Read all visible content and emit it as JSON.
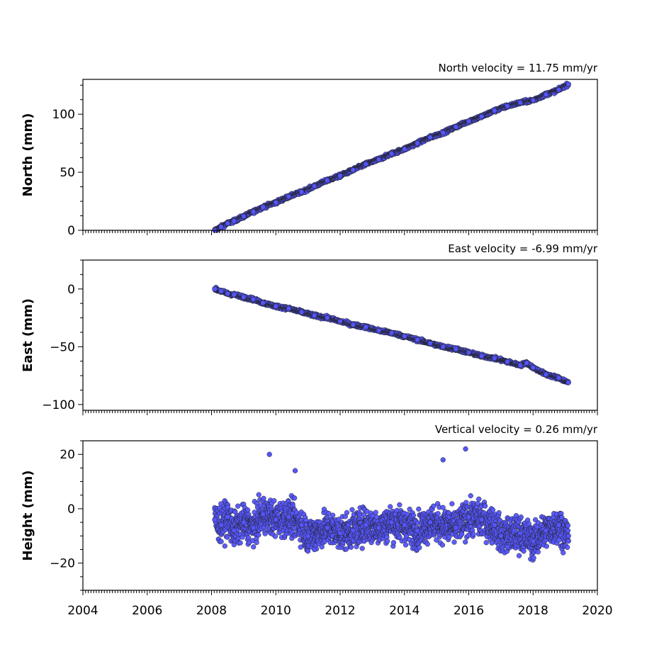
{
  "chart_data": [
    {
      "type": "scatter",
      "title": "North velocity = 11.75 mm/yr",
      "ylabel": "North (mm)",
      "xlim": [
        2004,
        2020
      ],
      "ylim": [
        0,
        130
      ],
      "yticks": [
        0,
        50,
        100
      ],
      "marker_color": "#5555ff",
      "series": [
        {
          "x": [
            2008.1,
            2008.3,
            2008.5,
            2008.7,
            2009.0,
            2009.3,
            2009.6,
            2010.0,
            2010.4,
            2010.8,
            2011.2,
            2011.6,
            2012.0,
            2012.4,
            2012.8,
            2013.2,
            2013.6,
            2014.0,
            2014.4,
            2014.8,
            2015.2,
            2015.6,
            2016.0,
            2016.4,
            2016.8,
            2017.2,
            2017.6,
            2018.0,
            2018.4,
            2018.8,
            2019.1
          ],
          "y": [
            0,
            3,
            6,
            8,
            12,
            16,
            20,
            24,
            29,
            33,
            38,
            43,
            47,
            52,
            57,
            61,
            66,
            70,
            75,
            80,
            84,
            89,
            94,
            98,
            103,
            107,
            110,
            112,
            117,
            121,
            126
          ]
        }
      ]
    },
    {
      "type": "scatter",
      "title": "East velocity = -6.99 mm/yr",
      "ylabel": "East (mm)",
      "xlim": [
        2004,
        2020
      ],
      "ylim": [
        -105,
        25
      ],
      "yticks": [
        -100,
        -50,
        0
      ],
      "marker_color": "#5555ff",
      "series": [
        {
          "x": [
            2008.1,
            2008.3,
            2008.5,
            2008.7,
            2009.0,
            2009.3,
            2009.6,
            2010.0,
            2010.4,
            2010.8,
            2011.2,
            2011.6,
            2012.0,
            2012.4,
            2012.8,
            2013.2,
            2013.6,
            2014.0,
            2014.4,
            2014.8,
            2015.2,
            2015.6,
            2016.0,
            2016.4,
            2016.8,
            2017.2,
            2017.6,
            2017.8,
            2018.0,
            2018.4,
            2018.8,
            2019.1
          ],
          "y": [
            0,
            -2,
            -4,
            -5,
            -7,
            -9,
            -12,
            -15,
            -17,
            -20,
            -23,
            -25,
            -28,
            -31,
            -33,
            -36,
            -38,
            -41,
            -44,
            -47,
            -50,
            -52,
            -55,
            -58,
            -60,
            -63,
            -66,
            -64,
            -68,
            -74,
            -77,
            -81
          ]
        }
      ]
    },
    {
      "type": "scatter",
      "title": "Vertical velocity = 0.26 mm/yr",
      "ylabel": "Height (mm)",
      "xlabel": "",
      "xlim": [
        2004,
        2020
      ],
      "ylim": [
        -30,
        25
      ],
      "yticks": [
        -20,
        0,
        20
      ],
      "xticks": [
        2004,
        2006,
        2008,
        2010,
        2012,
        2014,
        2016,
        2018,
        2020
      ],
      "xtick_labels": [
        "2004",
        "2006",
        "2008",
        "2010",
        "2012",
        "2014",
        "2016",
        "2018",
        "2020"
      ],
      "marker_color": "#5555ff",
      "series": [
        {
          "x": [
            2008.1,
            2008.3,
            2008.5,
            2008.7,
            2009.0,
            2009.3,
            2009.6,
            2009.8,
            2010.0,
            2010.4,
            2010.6,
            2010.8,
            2011.0,
            2011.2,
            2011.6,
            2012.0,
            2012.4,
            2012.8,
            2013.2,
            2013.6,
            2014.0,
            2014.4,
            2014.8,
            2015.2,
            2015.6,
            2015.9,
            2016.0,
            2016.4,
            2016.8,
            2017.0,
            2017.2,
            2017.6,
            2018.0,
            2018.4,
            2018.8,
            2019.1
          ],
          "y": [
            -4,
            -6,
            -3,
            -8,
            -5,
            -7,
            -2,
            20,
            -4,
            -3,
            14,
            -6,
            -10,
            -15,
            -7,
            -9,
            -8,
            -6,
            -7,
            -5,
            -6,
            -8,
            -5,
            18,
            -7,
            22,
            -3,
            -4,
            -6,
            -10,
            -14,
            -9,
            -12,
            -8,
            -6,
            -10
          ]
        }
      ]
    }
  ]
}
